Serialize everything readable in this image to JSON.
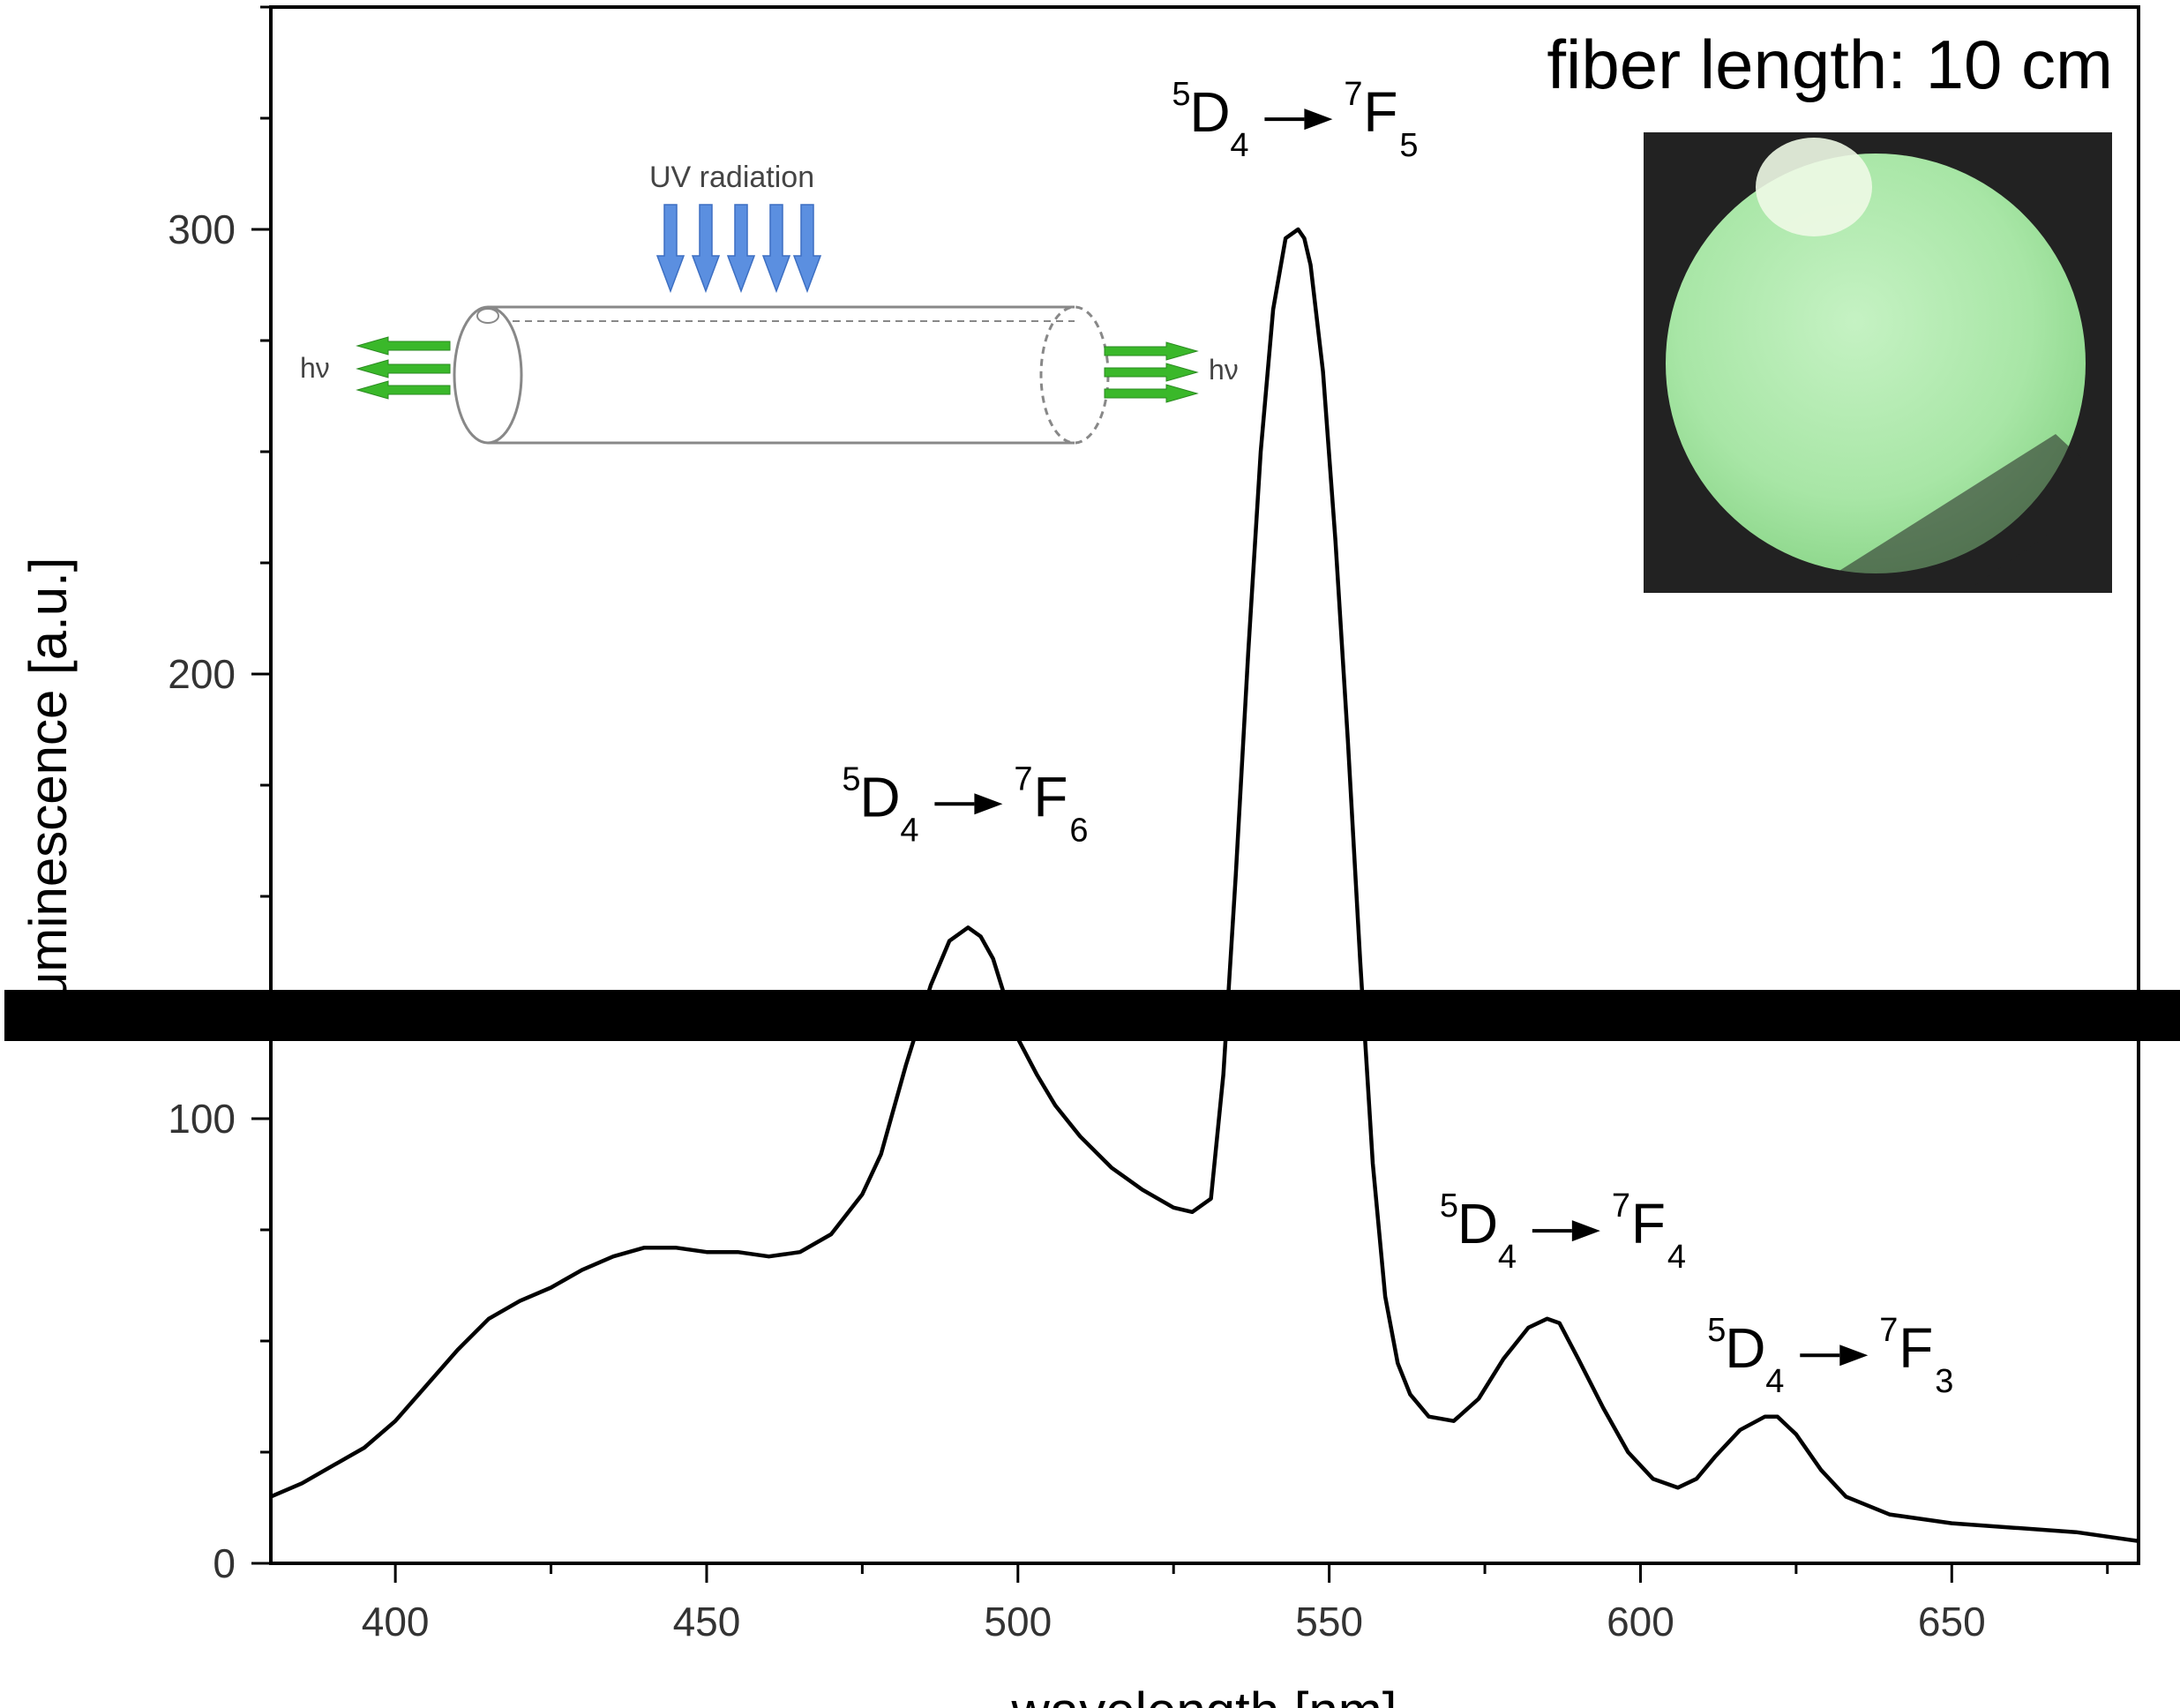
{
  "chart_data": {
    "type": "line",
    "xlabel": "wavelength [nm]",
    "ylabel": "luminescence [a.u.]",
    "xlim": [
      380,
      680
    ],
    "ylim": [
      0,
      350
    ],
    "x_ticks": [
      400,
      450,
      500,
      550,
      600,
      650
    ],
    "y_ticks": [
      0,
      100,
      200,
      300
    ],
    "grid": false,
    "legend": "none",
    "line_color": "#000000",
    "series": [
      {
        "x": [
          380,
          385,
          390,
          395,
          400,
          405,
          410,
          415,
          420,
          425,
          430,
          435,
          440,
          445,
          450,
          455,
          460,
          465,
          470,
          475,
          478,
          482,
          486,
          489,
          492,
          494,
          496,
          498,
          500,
          503,
          506,
          510,
          515,
          520,
          525,
          528,
          531,
          533,
          535,
          537,
          539,
          541,
          543,
          545,
          546,
          547,
          549,
          551,
          553,
          555,
          557,
          559,
          561,
          563,
          566,
          570,
          574,
          578,
          582,
          585,
          587,
          590,
          594,
          598,
          602,
          606,
          609,
          612,
          616,
          620,
          622,
          625,
          629,
          633,
          640,
          650,
          660,
          670,
          680
        ],
        "y": [
          15,
          18,
          22,
          26,
          32,
          40,
          48,
          55,
          59,
          62,
          66,
          69,
          71,
          71,
          70,
          70,
          69,
          70,
          74,
          83,
          92,
          112,
          130,
          140,
          143,
          141,
          136,
          127,
          118,
          110,
          103,
          96,
          89,
          84,
          80,
          79,
          82,
          110,
          155,
          205,
          250,
          282,
          298,
          300,
          298,
          292,
          268,
          230,
          185,
          135,
          90,
          60,
          45,
          38,
          33,
          32,
          37,
          46,
          53,
          55,
          54,
          46,
          35,
          25,
          19,
          17,
          19,
          24,
          30,
          33,
          33,
          29,
          21,
          15,
          11,
          9,
          8,
          7,
          5
        ]
      }
    ],
    "annotations": [
      {
        "main1": "D",
        "sup1": "5",
        "sub1": "4",
        "main2": "F",
        "sup2": "7",
        "sub2": "5",
        "x": 546,
        "y": 322
      },
      {
        "main1": "D",
        "sup1": "5",
        "sub1": "4",
        "main2": "F",
        "sup2": "7",
        "sub2": "6",
        "x": 493,
        "y": 168
      },
      {
        "main1": "D",
        "sup1": "5",
        "sub1": "4",
        "main2": "F",
        "sup2": "7",
        "sub2": "4",
        "x": 589,
        "y": 72
      },
      {
        "main1": "D",
        "sup1": "5",
        "sub1": "4",
        "main2": "F",
        "sup2": "7",
        "sub2": "3",
        "x": 632,
        "y": 44
      }
    ],
    "info_text": "fiber length: 10 cm"
  },
  "diagram": {
    "uv_label": "UV radiation",
    "left_emission_label": "hν",
    "right_emission_label": "hν",
    "uv_arrow_color": "#5b8fe0",
    "emission_arrow_color": "#3ab82a"
  },
  "photo": {
    "background_color": "#222222",
    "glow_color": "#b4edb2"
  },
  "redaction_color": "#000000"
}
